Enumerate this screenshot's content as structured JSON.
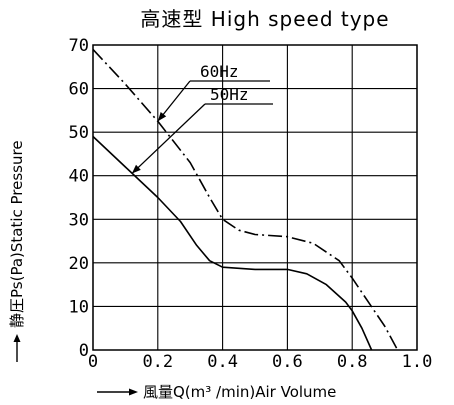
{
  "chart_data": {
    "type": "line",
    "title": "高速型 High speed type",
    "xlabel": "風量Q(m³ /min)Air Volume",
    "ylabel": "静圧Ps(Pa)Static Pressure",
    "xlim": [
      0,
      1.0
    ],
    "ylim": [
      0,
      70
    ],
    "x_ticks": [
      "0",
      "0.2",
      "0.4",
      "0.6",
      "0.8",
      "1.0"
    ],
    "y_ticks": [
      "0",
      "10",
      "20",
      "30",
      "40",
      "50",
      "60",
      "70"
    ],
    "grid": true,
    "series": [
      {
        "name": "60Hz",
        "line_style": "dash-dot",
        "points": [
          [
            0,
            69
          ],
          [
            0.1,
            61
          ],
          [
            0.2,
            52.5
          ],
          [
            0.3,
            43
          ],
          [
            0.36,
            35
          ],
          [
            0.4,
            30
          ],
          [
            0.45,
            27.5
          ],
          [
            0.5,
            26.5
          ],
          [
            0.6,
            26
          ],
          [
            0.68,
            24.5
          ],
          [
            0.76,
            20.5
          ],
          [
            0.8,
            16.5
          ],
          [
            0.85,
            11
          ],
          [
            0.9,
            5.5
          ],
          [
            0.94,
            0
          ]
        ]
      },
      {
        "name": "50Hz",
        "line_style": "solid",
        "points": [
          [
            0,
            49
          ],
          [
            0.1,
            42
          ],
          [
            0.2,
            35
          ],
          [
            0.27,
            29.5
          ],
          [
            0.32,
            24
          ],
          [
            0.36,
            20.5
          ],
          [
            0.4,
            19
          ],
          [
            0.5,
            18.5
          ],
          [
            0.6,
            18.5
          ],
          [
            0.66,
            17.5
          ],
          [
            0.72,
            15
          ],
          [
            0.78,
            11
          ],
          [
            0.8,
            9
          ],
          [
            0.83,
            5
          ],
          [
            0.86,
            0
          ]
        ]
      }
    ],
    "legend_labels": [
      "60Hz",
      "50Hz"
    ],
    "line_color": "#000000"
  }
}
